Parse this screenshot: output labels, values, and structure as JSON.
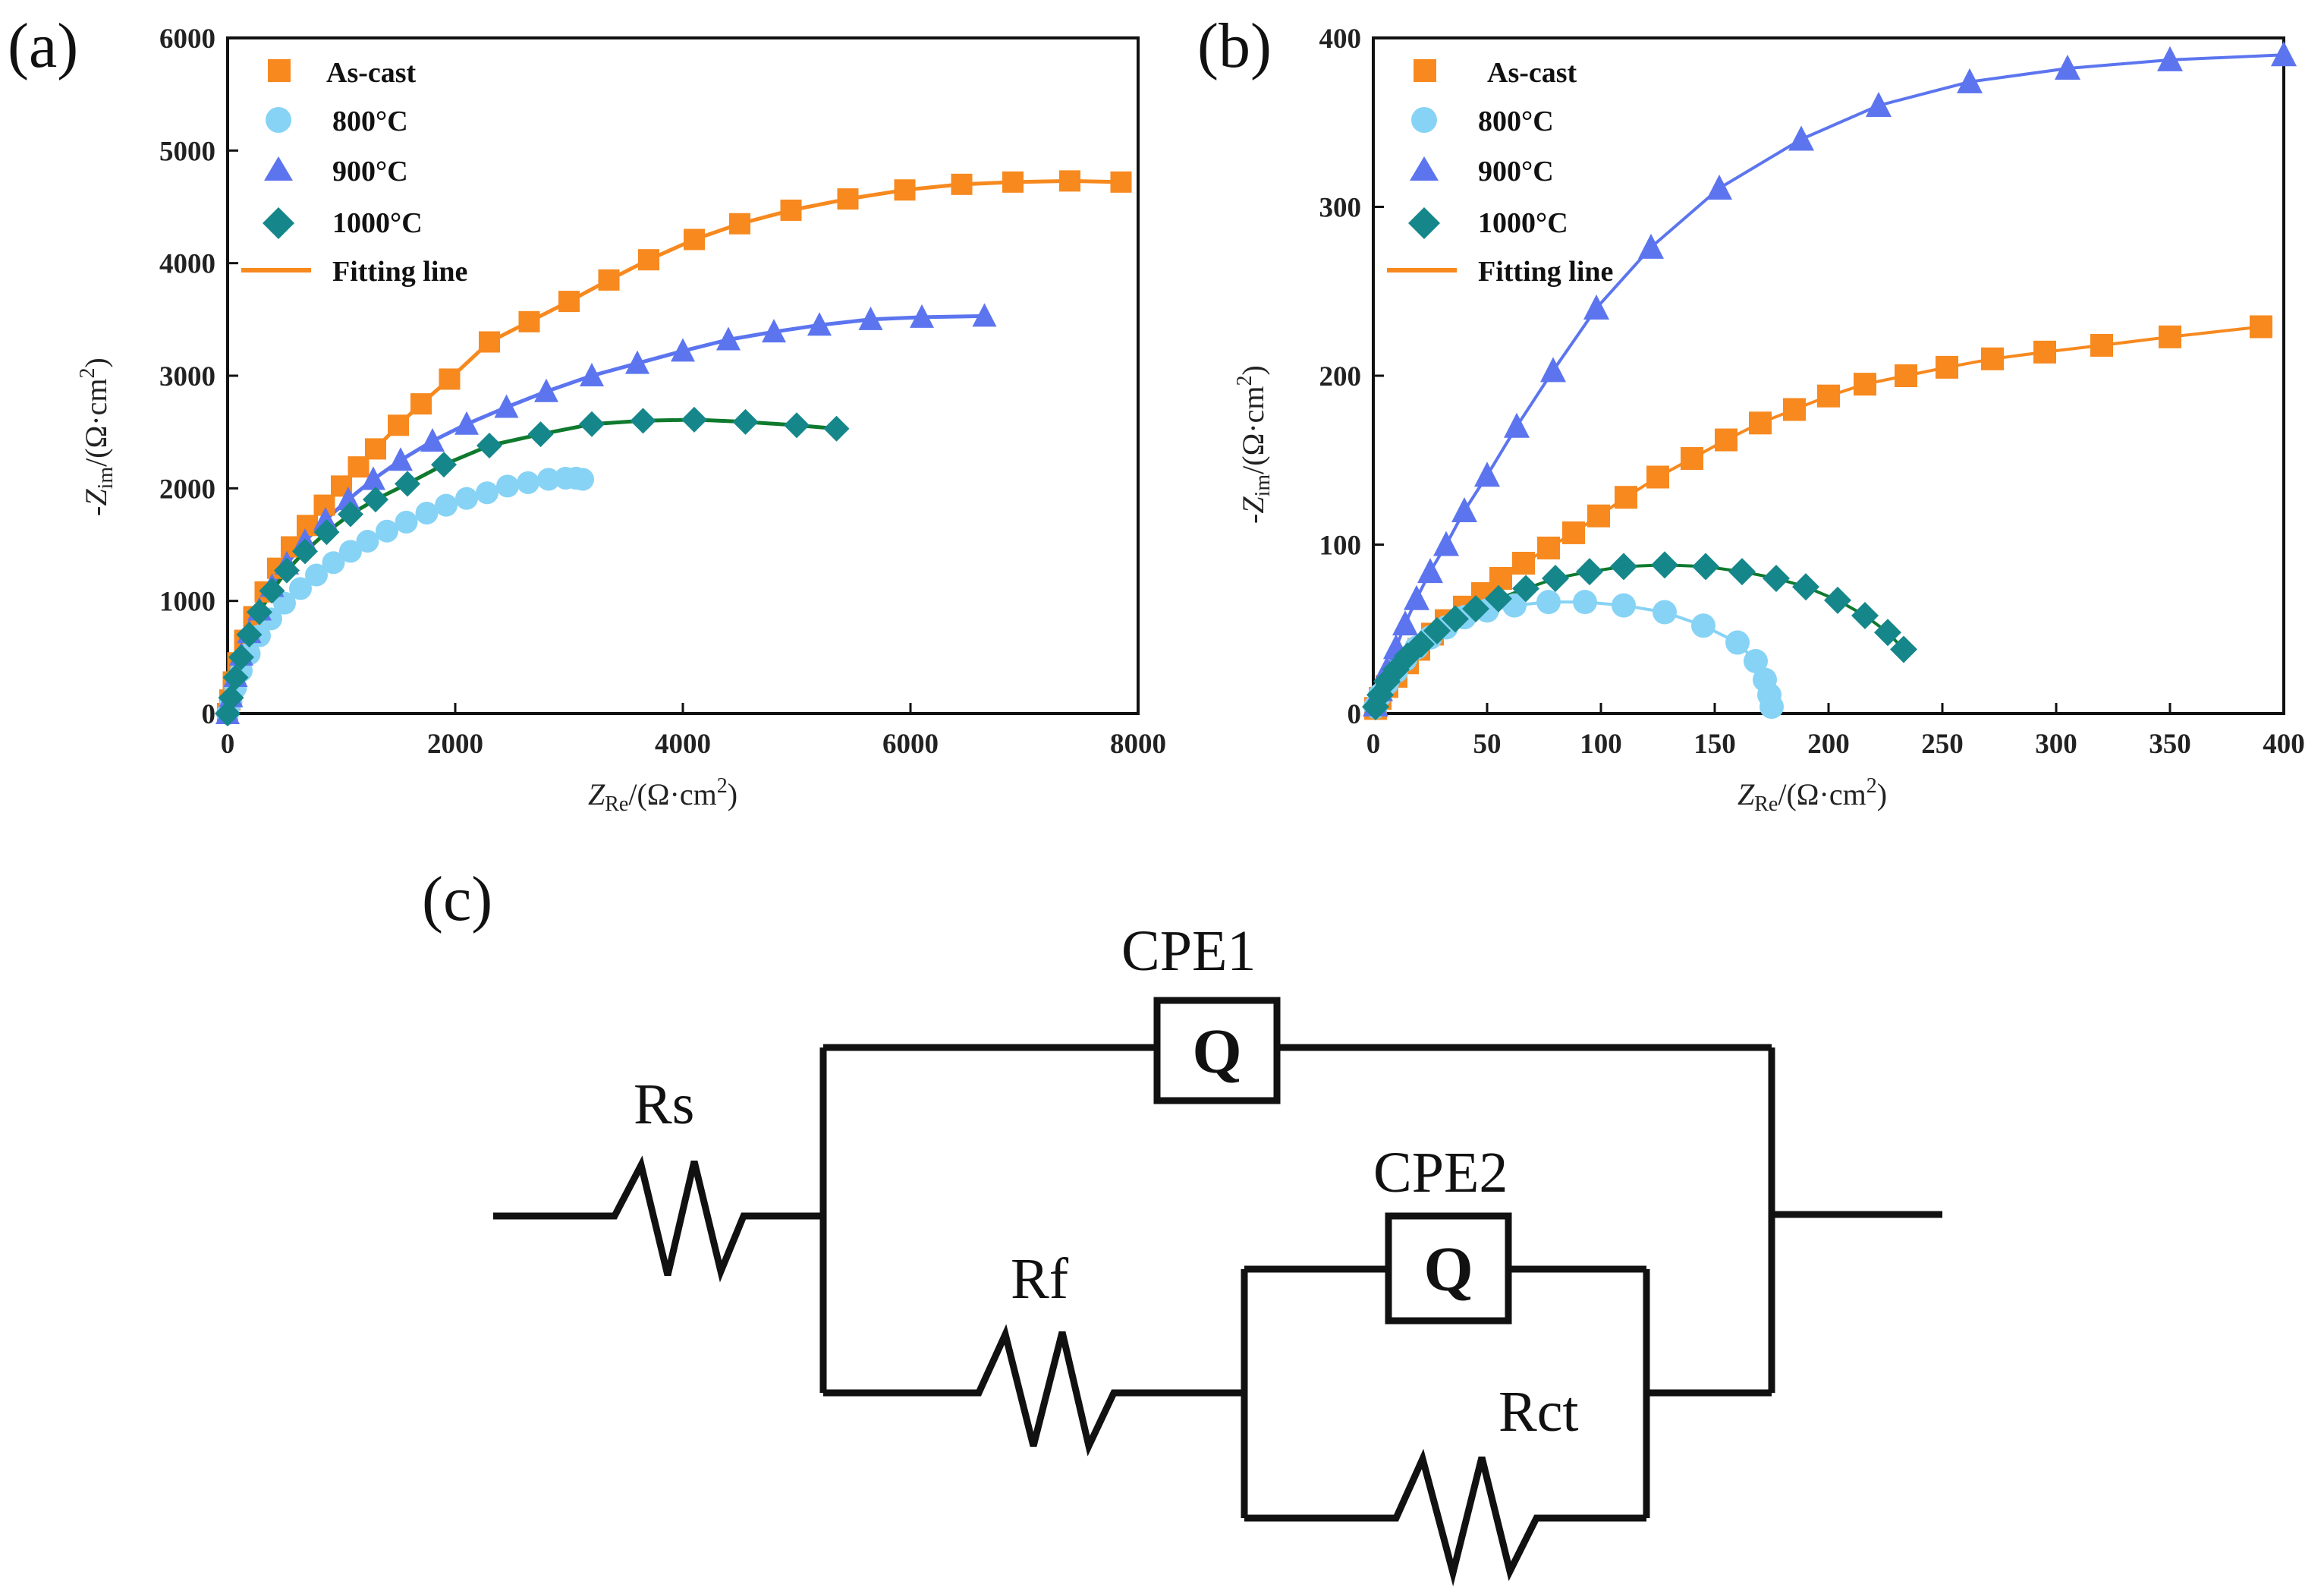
{
  "panels": {
    "a": "(a)",
    "b": "(b)",
    "c": "(c)"
  },
  "chart_data": [
    {
      "type": "scatter",
      "panel": "a",
      "xlabel_main": "Z",
      "xlabel_sub": "Re",
      "xlabel_unit": "/(Ω·cm",
      "xlabel_sup": "2",
      "xlabel_close": ")",
      "ylabel_main": "-Z",
      "ylabel_sub": "im",
      "ylabel_unit": "/(Ω·cm",
      "ylabel_sup": "2",
      "ylabel_close": ")",
      "xlim": [
        0,
        8000
      ],
      "ylim": [
        0,
        6000
      ],
      "xticks": [
        0,
        2000,
        4000,
        6000,
        8000
      ],
      "yticks": [
        0,
        1000,
        2000,
        3000,
        4000,
        5000,
        6000
      ],
      "legend": [
        "As-cast",
        "800°C",
        "900°C",
        "1000°C",
        "Fitting line"
      ],
      "legend_position": "top-left",
      "series": [
        {
          "name": "As-cast",
          "color": "#F7891F",
          "marker": "square",
          "x": [
            0,
            20,
            50,
            90,
            150,
            230,
            330,
            440,
            560,
            700,
            850,
            1000,
            1150,
            1300,
            1500,
            1700,
            1950,
            2300,
            2650,
            3000,
            3350,
            3700,
            4100,
            4500,
            4950,
            5450,
            5950,
            6450,
            6900,
            7400,
            7850
          ],
          "y": [
            0,
            120,
            280,
            450,
            650,
            860,
            1080,
            1290,
            1480,
            1670,
            1850,
            2020,
            2190,
            2350,
            2560,
            2750,
            2970,
            3300,
            3480,
            3660,
            3850,
            4030,
            4210,
            4350,
            4470,
            4570,
            4650,
            4700,
            4720,
            4730,
            4720
          ]
        },
        {
          "name": "800°C",
          "color": "#87D3F5",
          "marker": "circle",
          "x": [
            0,
            30,
            70,
            120,
            190,
            280,
            380,
            500,
            640,
            780,
            930,
            1080,
            1230,
            1400,
            1570,
            1750,
            1920,
            2100,
            2280,
            2460,
            2640,
            2820,
            2970,
            3060,
            3120
          ],
          "y": [
            0,
            100,
            230,
            380,
            530,
            690,
            840,
            980,
            1110,
            1230,
            1340,
            1440,
            1530,
            1620,
            1700,
            1780,
            1850,
            1910,
            1960,
            2020,
            2050,
            2080,
            2090,
            2090,
            2080
          ]
        },
        {
          "name": "900°C",
          "color": "#5C75EF",
          "marker": "triangle",
          "x": [
            0,
            30,
            70,
            120,
            190,
            280,
            390,
            520,
            680,
            860,
            1060,
            1280,
            1520,
            1800,
            2100,
            2450,
            2800,
            3200,
            3600,
            4000,
            4400,
            4800,
            5200,
            5650,
            6100,
            6650
          ],
          "y": [
            0,
            150,
            330,
            520,
            720,
            920,
            1130,
            1330,
            1530,
            1720,
            1900,
            2080,
            2250,
            2420,
            2570,
            2720,
            2860,
            3000,
            3110,
            3220,
            3320,
            3390,
            3450,
            3500,
            3520,
            3530
          ]
        },
        {
          "name": "1000°C",
          "color": "#15878A",
          "marker": "diamond",
          "x": [
            0,
            30,
            70,
            120,
            190,
            280,
            390,
            520,
            680,
            870,
            1080,
            1300,
            1580,
            1900,
            2300,
            2750,
            3200,
            3650,
            4100,
            4550,
            5000,
            5350
          ],
          "y": [
            0,
            140,
            320,
            500,
            700,
            900,
            1090,
            1270,
            1440,
            1610,
            1770,
            1900,
            2040,
            2210,
            2380,
            2480,
            2570,
            2600,
            2610,
            2590,
            2560,
            2530
          ]
        }
      ]
    },
    {
      "type": "scatter",
      "panel": "b",
      "xlabel_main": "Z",
      "xlabel_sub": "Re",
      "xlabel_unit": "/(Ω·cm",
      "xlabel_sup": "2",
      "xlabel_close": ")",
      "ylabel_main": "-Z",
      "ylabel_sub": "im",
      "ylabel_unit": "/(Ω·cm",
      "ylabel_sup": "2",
      "ylabel_close": ")",
      "xlim": [
        0,
        400
      ],
      "ylim": [
        0,
        400
      ],
      "xticks": [
        0,
        50,
        100,
        150,
        200,
        250,
        300,
        350,
        400
      ],
      "yticks": [
        0,
        100,
        200,
        300,
        400
      ],
      "legend": [
        "As-cast",
        "800°C",
        "900°C",
        "1000°C",
        "Fitting line"
      ],
      "legend_position": "top-left",
      "series": [
        {
          "name": "As-cast",
          "color": "#F7891F",
          "marker": "square",
          "x": [
            1,
            3,
            6,
            10,
            15,
            20,
            26,
            32,
            40,
            48,
            56,
            66,
            77,
            88,
            99,
            111,
            125,
            140,
            155,
            170,
            185,
            200,
            216,
            234,
            252,
            272,
            295,
            320,
            350,
            390
          ],
          "y": [
            3,
            9,
            16,
            22,
            30,
            38,
            47,
            55,
            63,
            71,
            80,
            89,
            98,
            107,
            117,
            128,
            140,
            151,
            162,
            172,
            180,
            188,
            195,
            200,
            205,
            210,
            214,
            218,
            223,
            229
          ]
        },
        {
          "name": "800°C",
          "color": "#87D3F5",
          "marker": "circle",
          "x": [
            1,
            3,
            6,
            10,
            14,
            19,
            25,
            32,
            40,
            50,
            62,
            77,
            93,
            110,
            128,
            145,
            160,
            168,
            172,
            174,
            175
          ],
          "y": [
            4,
            11,
            18,
            25,
            32,
            39,
            45,
            51,
            57,
            61,
            64,
            66,
            66,
            64,
            60,
            52,
            42,
            31,
            20,
            11,
            4
          ]
        },
        {
          "name": "900°C",
          "color": "#5C75EF",
          "marker": "triangle",
          "x": [
            1,
            3,
            6,
            10,
            14,
            19,
            25,
            32,
            40,
            50,
            63,
            79,
            98,
            122,
            152,
            188,
            222,
            262,
            305,
            350,
            400
          ],
          "y": [
            5,
            14,
            26,
            39,
            53,
            68,
            84,
            100,
            120,
            141,
            170,
            203,
            240,
            276,
            311,
            340,
            360,
            374,
            382,
            387,
            390
          ]
        },
        {
          "name": "1000°C",
          "color": "#15878A",
          "marker": "diamond",
          "x": [
            1,
            3,
            6,
            10,
            15,
            21,
            28,
            36,
            45,
            55,
            67,
            80,
            95,
            110,
            128,
            146,
            162,
            177,
            190,
            204,
            216,
            226,
            233
          ],
          "y": [
            4,
            11,
            19,
            26,
            34,
            41,
            49,
            56,
            62,
            68,
            74,
            80,
            84,
            87,
            88,
            87,
            84,
            80,
            75,
            67,
            58,
            48,
            38
          ]
        }
      ]
    }
  ],
  "circuit": {
    "labels": {
      "rs": "Rs",
      "rf": "Rf",
      "rct": "Rct",
      "cpe1": "CPE1",
      "cpe2": "CPE2",
      "q1": "Q",
      "q2": "Q"
    }
  }
}
